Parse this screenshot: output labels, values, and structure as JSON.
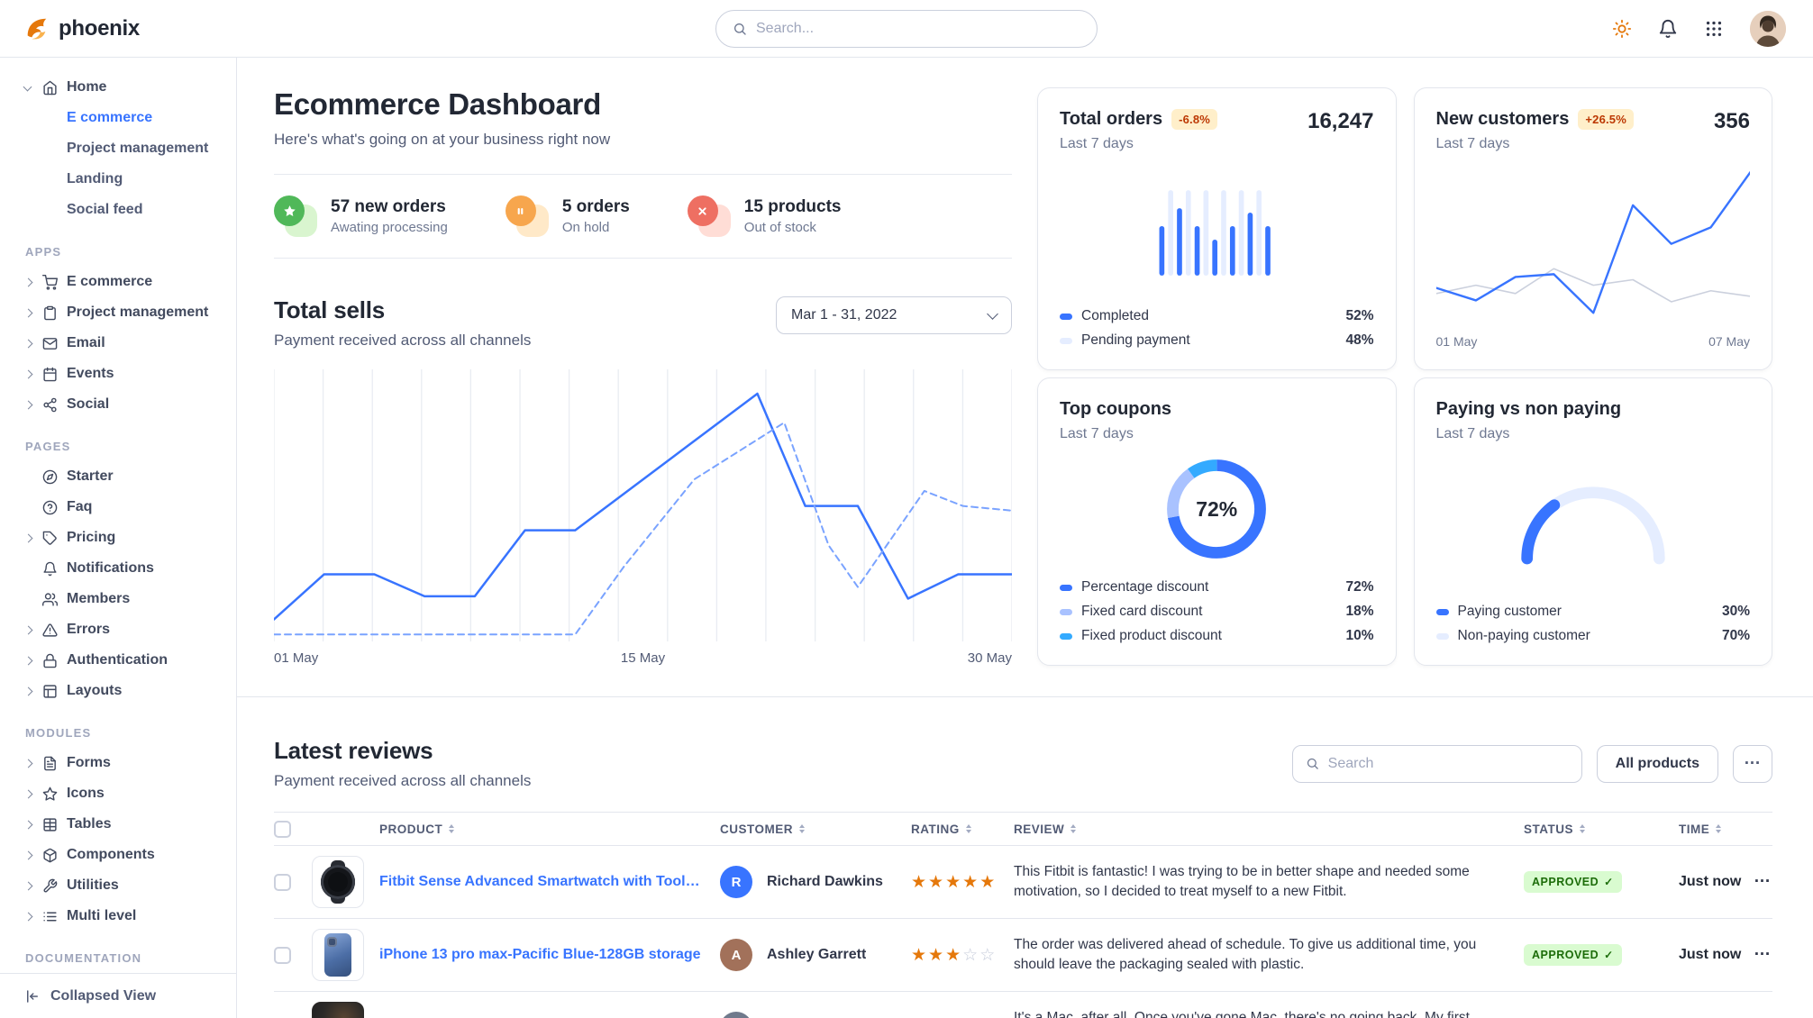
{
  "navbar": {
    "brand": "phoenix",
    "search": {
      "placeholder": "Search..."
    },
    "actions": [
      {
        "name": "theme-toggle",
        "icon": "sun"
      },
      {
        "name": "notifications",
        "icon": "bell"
      },
      {
        "name": "apps-grid",
        "icon": "grid9"
      },
      {
        "name": "profile",
        "icon": "avatar"
      }
    ]
  },
  "sidebar": {
    "sections": [
      {
        "label": "",
        "items": [
          {
            "label": "Home",
            "icon": "home",
            "caret": "down",
            "children": [
              {
                "label": "E commerce",
                "active": true
              },
              {
                "label": "Project management"
              },
              {
                "label": "Landing"
              },
              {
                "label": "Social feed"
              }
            ]
          }
        ]
      },
      {
        "label": "APPS",
        "items": [
          {
            "label": "E commerce",
            "icon": "shopping-cart",
            "caret": "right"
          },
          {
            "label": "Project management",
            "icon": "clipboard",
            "caret": "right"
          },
          {
            "label": "Email",
            "icon": "mail",
            "caret": "right"
          },
          {
            "label": "Events",
            "icon": "calendar",
            "caret": "right"
          },
          {
            "label": "Social",
            "icon": "share",
            "caret": "right"
          }
        ]
      },
      {
        "label": "PAGES",
        "items": [
          {
            "label": "Starter",
            "icon": "compass"
          },
          {
            "label": "Faq",
            "icon": "help-circle"
          },
          {
            "label": "Pricing",
            "icon": "tag",
            "caret": "right"
          },
          {
            "label": "Notifications",
            "icon": "bell"
          },
          {
            "label": "Members",
            "icon": "users"
          },
          {
            "label": "Errors",
            "icon": "alert-triangle",
            "caret": "right"
          },
          {
            "label": "Authentication",
            "icon": "lock",
            "caret": "right"
          },
          {
            "label": "Layouts",
            "icon": "layout",
            "caret": "right"
          }
        ]
      },
      {
        "label": "MODULES",
        "items": [
          {
            "label": "Forms",
            "icon": "file-text",
            "caret": "right"
          },
          {
            "label": "Icons",
            "icon": "star",
            "caret": "right"
          },
          {
            "label": "Tables",
            "icon": "table",
            "caret": "right"
          },
          {
            "label": "Components",
            "icon": "box",
            "caret": "right"
          },
          {
            "label": "Utilities",
            "icon": "wrench",
            "caret": "right"
          },
          {
            "label": "Multi level",
            "icon": "list",
            "caret": "right"
          }
        ]
      },
      {
        "label": "DOCUMENTATION",
        "items": []
      }
    ],
    "footer": {
      "label": "Collapsed View",
      "icon": "collapse"
    }
  },
  "page": {
    "title": "Ecommerce Dashboard",
    "subtitle": "Here's what's going on at your business right now"
  },
  "stats": [
    {
      "value": "57 new orders",
      "label": "Awating processing",
      "tone": "success"
    },
    {
      "value": "5 orders",
      "label": "On hold",
      "tone": "warning"
    },
    {
      "value": "15 products",
      "label": "Out of stock",
      "tone": "danger"
    }
  ],
  "total_sells": {
    "title": "Total sells",
    "subtitle": "Payment received across all channels",
    "date_range": "Mar 1 - 31, 2022"
  },
  "cards": {
    "total_orders": {
      "title": "Total orders",
      "badge": "-6.8%",
      "period": "Last 7 days",
      "value": "16,247"
    },
    "new_customers": {
      "title": "New customers",
      "badge": "+26.5%",
      "period": "Last 7 days",
      "value": "356"
    },
    "top_coupons": {
      "title": "Top coupons",
      "period": "Last 7 days",
      "center_value": "72%"
    },
    "paying": {
      "title": "Paying vs non paying",
      "period": "Last 7 days"
    }
  },
  "reviews": {
    "title": "Latest reviews",
    "subtitle": "Payment received across all channels",
    "search_placeholder": "Search",
    "filter_label": "All products",
    "columns": [
      "PRODUCT",
      "CUSTOMER",
      "RATING",
      "REVIEW",
      "STATUS",
      "TIME"
    ],
    "rows": [
      {
        "product": "Fitbit Sense Advanced Smartwatch with Tools fo...",
        "customer": "Richard Dawkins",
        "avatar_initial": "R",
        "avatar_color": "#3874ff",
        "rating": 5,
        "review": "This Fitbit is fantastic! I was trying to be in better shape and needed some motivation, so I decided to treat myself to a new Fitbit.",
        "status": "APPROVED",
        "time": "Just now",
        "thumb": "watch"
      },
      {
        "product": "iPhone 13 pro max-Pacific Blue-128GB storage",
        "customer": "Ashley Garrett",
        "avatar_initial": "A",
        "avatar_color": "#a2715a",
        "rating": 3,
        "review": "The order was delivered ahead of schedule. To give us additional time, you should leave the packaging sealed with plastic.",
        "status": "APPROVED",
        "time": "Just now",
        "thumb": "phone"
      },
      {
        "product": "",
        "customer": "",
        "avatar_initial": "",
        "avatar_color": "#707a8c",
        "rating": null,
        "review": "It's a Mac, after all. Once you've gone Mac, there's no going back. My first Mac lasted...",
        "status": "",
        "time": "",
        "thumb": "mac"
      }
    ]
  },
  "chart_data": [
    {
      "id": "total_sells",
      "type": "line",
      "title": "Total sells",
      "x_labels": [
        "01 May",
        "15 May",
        "30 May"
      ],
      "gridlines": 16,
      "legend_position": "none",
      "series": [
        {
          "name": "current",
          "style": "solid",
          "color": "#3874ff",
          "points": [
            [
              0,
              216
            ],
            [
              43,
              177
            ],
            [
              86,
              177
            ],
            [
              129,
              196
            ],
            [
              172,
              196
            ],
            [
              215,
              139
            ],
            [
              258,
              139
            ],
            [
              414,
              21
            ],
            [
              455,
              118
            ],
            [
              500,
              118
            ],
            [
              543,
              198
            ],
            [
              586,
              177
            ],
            [
              632,
              177
            ]
          ]
        },
        {
          "name": "previous",
          "style": "dashed",
          "color": "#7aa3ff",
          "points": [
            [
              0,
              229
            ],
            [
              86,
              229
            ],
            [
              172,
              229
            ],
            [
              258,
              229
            ],
            [
              300,
              170
            ],
            [
              360,
              95
            ],
            [
              437,
              46
            ],
            [
              475,
              152
            ],
            [
              500,
              188
            ],
            [
              557,
              105
            ],
            [
              590,
              118
            ],
            [
              632,
              122
            ]
          ]
        }
      ]
    },
    {
      "id": "total_orders",
      "type": "bar",
      "title": "Total orders",
      "values": [
        55,
        95,
        75,
        95,
        55,
        95,
        40,
        95,
        55,
        95,
        70,
        95,
        55
      ],
      "colors_alternate": [
        "#3874ff",
        "#e5edff"
      ],
      "legend": [
        {
          "label": "Completed",
          "value": 52
        },
        {
          "label": "Pending payment",
          "value": 48
        }
      ]
    },
    {
      "id": "new_customers",
      "type": "line",
      "title": "New customers",
      "x_labels": [
        "01 May",
        "07 May"
      ],
      "series": [
        {
          "name": "previous",
          "color": "#cbd0dd",
          "points": [
            [
              0,
              92
            ],
            [
              34,
              86
            ],
            [
              68,
              92
            ],
            [
              101,
              74
            ],
            [
              135,
              86
            ],
            [
              169,
              82
            ],
            [
              202,
              98
            ],
            [
              236,
              90
            ],
            [
              270,
              94
            ]
          ]
        },
        {
          "name": "current",
          "color": "#3874ff",
          "points": [
            [
              0,
              88
            ],
            [
              34,
              97
            ],
            [
              68,
              80
            ],
            [
              101,
              78
            ],
            [
              135,
              106
            ],
            [
              169,
              28
            ],
            [
              202,
              56
            ],
            [
              236,
              44
            ],
            [
              270,
              4
            ]
          ]
        }
      ]
    },
    {
      "id": "top_coupons",
      "type": "donut",
      "title": "Top coupons",
      "center_label": "72%",
      "segments": [
        {
          "label": "Percentage discount",
          "value": 72,
          "color": "#3874ff"
        },
        {
          "label": "Fixed card discount",
          "value": 18,
          "color": "#a9c2ff"
        },
        {
          "label": "Fixed product discount",
          "value": 10,
          "color": "#33aaff"
        }
      ]
    },
    {
      "id": "paying_vs_non_paying",
      "type": "gauge",
      "title": "Paying vs non paying",
      "segments": [
        {
          "label": "Paying customer",
          "value": 30,
          "color": "#3874ff"
        },
        {
          "label": "Non-paying customer",
          "value": 70,
          "color": "#e5edff"
        }
      ]
    }
  ]
}
